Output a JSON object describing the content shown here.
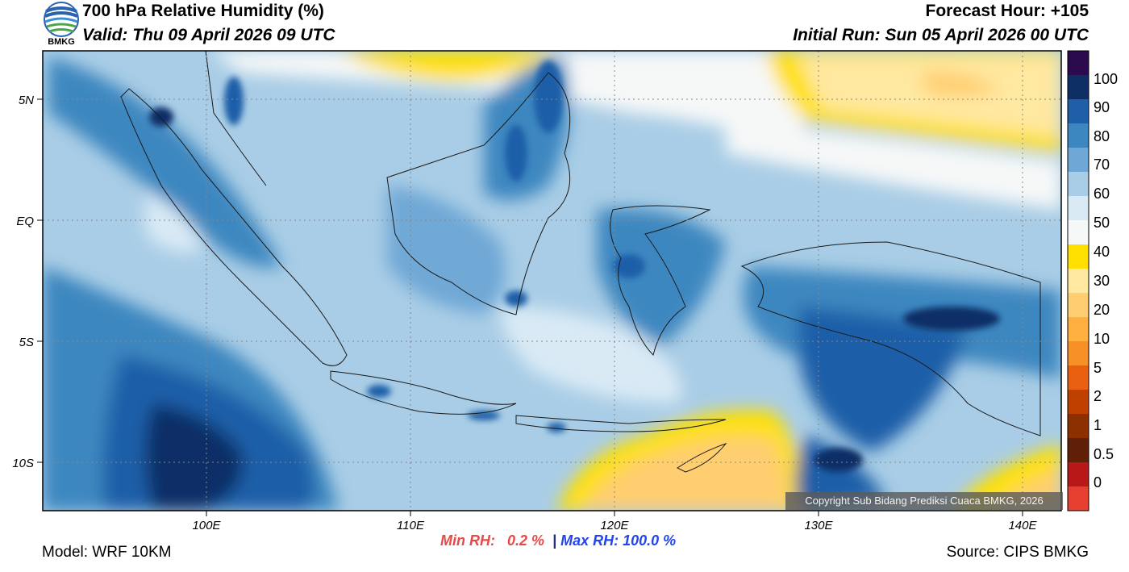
{
  "header": {
    "title": "700 hPa Relative Humidity (%)",
    "valid": "Valid: Thu 09 April 2026 09 UTC",
    "forecast_hour": "Forecast Hour: +105",
    "initial_run": "Initial Run: Sun 05 April 2026 00 UTC",
    "logo_text": "BMKG"
  },
  "map": {
    "lat_labels": [
      "5N",
      "EQ",
      "5S",
      "10S"
    ],
    "lon_labels": [
      "100E",
      "110E",
      "120E",
      "130E",
      "140E"
    ],
    "copyright": "Copyright Sub Bidang Prediksi Cuaca BMKG, 2026"
  },
  "colorbar": {
    "labels": [
      "100",
      "90",
      "80",
      "70",
      "60",
      "50",
      "40",
      "30",
      "20",
      "10",
      "5",
      "2",
      "1",
      "0.5",
      "0"
    ],
    "colors": [
      "#2b0a4e",
      "#0d2f66",
      "#1f5fa8",
      "#3d87c0",
      "#6fa8d6",
      "#a9cde6",
      "#d9eaf5",
      "#f6f8f8",
      "#ffe000",
      "#ffe8a0",
      "#ffce70",
      "#ffb040",
      "#f89028",
      "#e86010",
      "#c04000",
      "#8c3000",
      "#602008",
      "#b81818",
      "#e84030"
    ]
  },
  "footer": {
    "min_label": "Min RH:",
    "min_value": "0.2 %",
    "separator": "|",
    "max_label": "Max RH: 100.0 %",
    "model": "Model: WRF 10KM",
    "source": "Source: CIPS BMKG"
  }
}
